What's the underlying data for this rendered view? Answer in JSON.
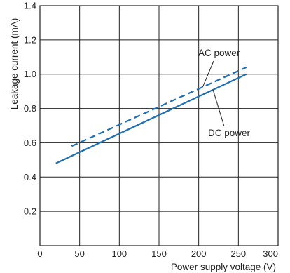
{
  "chart_data": {
    "type": "line",
    "xlabel": "Power supply voltage (V)",
    "ylabel": "Leakage current (mA)",
    "xlim": [
      0,
      300
    ],
    "ylim": [
      0,
      1.4
    ],
    "xticks": [
      0,
      50,
      100,
      150,
      200,
      250,
      300
    ],
    "xtick_labels": [
      "0",
      "50",
      "100",
      "150",
      "200",
      "250",
      "300"
    ],
    "yticks": [
      0.2,
      0.4,
      0.6,
      0.8,
      1.0,
      1.2,
      1.4
    ],
    "ytick_labels": [
      "0.2",
      "0.4",
      "0.6",
      "0.8",
      "1.0",
      "1.2",
      "1.4"
    ],
    "grid": true,
    "series": [
      {
        "name": "AC power",
        "style": "dashed",
        "color": "#1f6fb2",
        "x": [
          40,
          260
        ],
        "y": [
          0.58,
          1.04
        ]
      },
      {
        "name": "DC power",
        "style": "solid",
        "color": "#1f6fb2",
        "x": [
          20,
          260
        ],
        "y": [
          0.48,
          1.0
        ]
      }
    ],
    "annotations": [
      {
        "text": "AC power",
        "series": 0
      },
      {
        "text": "DC power",
        "series": 1
      }
    ]
  }
}
